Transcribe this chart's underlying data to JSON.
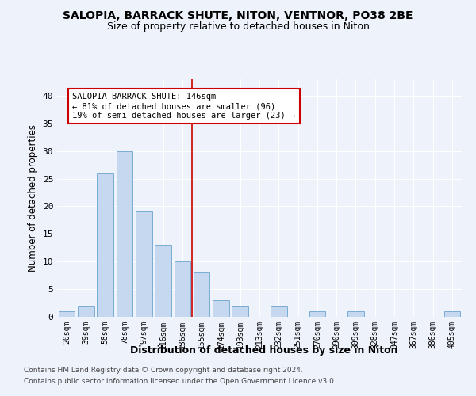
{
  "title1": "SALOPIA, BARRACK SHUTE, NITON, VENTNOR, PO38 2BE",
  "title2": "Size of property relative to detached houses in Niton",
  "xlabel": "Distribution of detached houses by size in Niton",
  "ylabel": "Number of detached properties",
  "categories": [
    "20sqm",
    "39sqm",
    "58sqm",
    "78sqm",
    "97sqm",
    "116sqm",
    "136sqm",
    "155sqm",
    "174sqm",
    "193sqm",
    "213sqm",
    "232sqm",
    "251sqm",
    "270sqm",
    "290sqm",
    "309sqm",
    "328sqm",
    "347sqm",
    "367sqm",
    "386sqm",
    "405sqm"
  ],
  "values": [
    1,
    2,
    26,
    30,
    19,
    13,
    10,
    8,
    3,
    2,
    0,
    2,
    0,
    1,
    0,
    1,
    0,
    0,
    0,
    0,
    1
  ],
  "bar_color": "#c5d8f0",
  "bar_edgecolor": "#7aadd4",
  "bar_width": 0.85,
  "vline_x": 6.5,
  "vline_color": "#cc0000",
  "annotation_text": "SALOPIA BARRACK SHUTE: 146sqm\n← 81% of detached houses are smaller (96)\n19% of semi-detached houses are larger (23) →",
  "annotation_box_edgecolor": "#cc0000",
  "annotation_box_facecolor": "#ffffff",
  "ylim": [
    0,
    43
  ],
  "yticks": [
    0,
    5,
    10,
    15,
    20,
    25,
    30,
    35,
    40
  ],
  "background_color": "#eef2fb",
  "footer1": "Contains HM Land Registry data © Crown copyright and database right 2024.",
  "footer2": "Contains public sector information licensed under the Open Government Licence v3.0.",
  "title_fontsize": 10,
  "subtitle_fontsize": 9,
  "axis_label_fontsize": 8.5,
  "tick_fontsize": 7,
  "annotation_fontsize": 7.5,
  "footer_fontsize": 6.5
}
